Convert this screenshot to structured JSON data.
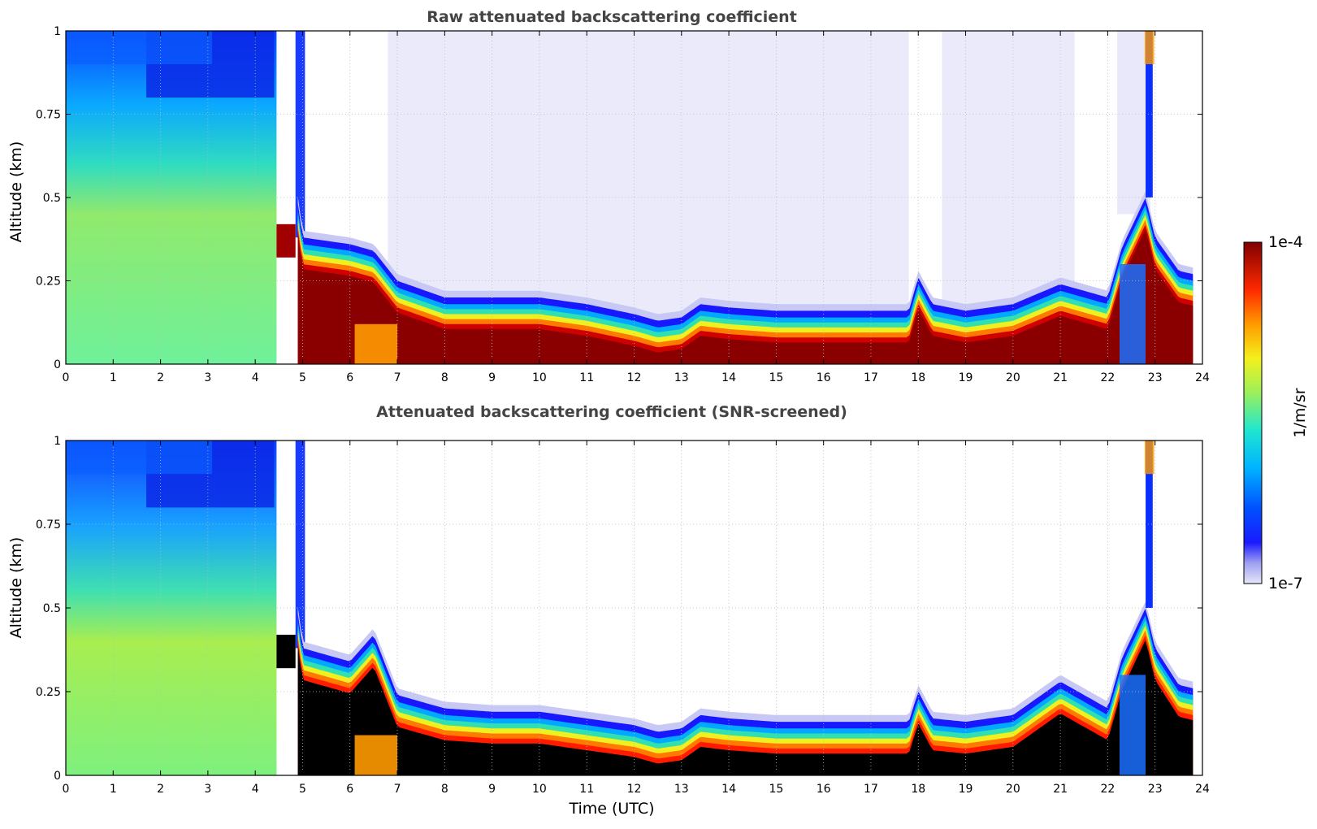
{
  "chart_data": [
    {
      "type": "heatmap",
      "title": "Raw attenuated backscattering coefficient",
      "xlabel": "",
      "ylabel": "Altitude (km)",
      "xlim": [
        0,
        24
      ],
      "ylim": [
        0,
        1
      ],
      "x_ticks": [
        "0",
        "1",
        "2",
        "3",
        "4",
        "5",
        "6",
        "7",
        "8",
        "9",
        "10",
        "11",
        "12",
        "13",
        "14",
        "15",
        "16",
        "17",
        "18",
        "19",
        "20",
        "21",
        "22",
        "23",
        "24"
      ],
      "y_ticks": [
        "0",
        "0.25",
        "0.5",
        "0.75",
        "1"
      ],
      "grid": true,
      "boundary_layer_top_km": {
        "x": [
          0,
          4.4,
          5.0,
          6.0,
          6.5,
          7.0,
          8.0,
          9.0,
          10.0,
          11.0,
          12.0,
          12.5,
          13.0,
          13.4,
          14.0,
          15.0,
          16.0,
          17.0,
          17.8,
          18.0,
          18.3,
          19.0,
          20.0,
          21.0,
          21.5,
          22.0,
          22.3,
          22.8,
          23.0,
          23.5,
          23.8
        ],
        "y": [
          1.0,
          1.0,
          0.38,
          0.36,
          0.34,
          0.25,
          0.2,
          0.2,
          0.2,
          0.18,
          0.15,
          0.13,
          0.14,
          0.18,
          0.17,
          0.16,
          0.16,
          0.16,
          0.16,
          0.26,
          0.18,
          0.16,
          0.18,
          0.24,
          0.22,
          0.2,
          0.35,
          0.5,
          0.38,
          0.28,
          0.27
        ]
      },
      "colorbar": {
        "label": "1/m/sr",
        "min_label": "1e-7",
        "max_label": "1e-4",
        "scale": "log",
        "colormap": "jet"
      }
    },
    {
      "type": "heatmap",
      "title": "Attenuated backscattering coefficient (SNR-screened)",
      "xlabel": "Time (UTC)",
      "ylabel": "Altitude (km)",
      "xlim": [
        0,
        24
      ],
      "ylim": [
        0,
        1
      ],
      "x_ticks": [
        "0",
        "1",
        "2",
        "3",
        "4",
        "5",
        "6",
        "7",
        "8",
        "9",
        "10",
        "11",
        "12",
        "13",
        "14",
        "15",
        "16",
        "17",
        "18",
        "19",
        "20",
        "21",
        "22",
        "23",
        "24"
      ],
      "y_ticks": [
        "0",
        "0.25",
        "0.5",
        "0.75",
        "1"
      ],
      "grid": true,
      "screened_color": "#000000",
      "boundary_layer_top_km": {
        "x": [
          0,
          4.4,
          5.0,
          6.0,
          6.5,
          7.0,
          8.0,
          9.0,
          10.0,
          11.0,
          12.0,
          12.5,
          13.0,
          13.4,
          14.0,
          15.0,
          16.0,
          17.0,
          17.8,
          18.0,
          18.3,
          19.0,
          20.0,
          21.0,
          21.5,
          22.0,
          22.3,
          22.8,
          23.0,
          23.5,
          23.8
        ],
        "y": [
          1.0,
          1.0,
          0.38,
          0.34,
          0.42,
          0.24,
          0.2,
          0.19,
          0.19,
          0.17,
          0.15,
          0.13,
          0.14,
          0.18,
          0.17,
          0.16,
          0.16,
          0.16,
          0.16,
          0.25,
          0.17,
          0.16,
          0.18,
          0.28,
          0.24,
          0.2,
          0.35,
          0.5,
          0.38,
          0.27,
          0.26
        ]
      },
      "colorbar": {
        "label": "1/m/sr",
        "min_label": "1e-7",
        "max_label": "1e-4",
        "scale": "log",
        "colormap": "jet"
      }
    }
  ],
  "colors": {
    "background_low": "#e6e6fa",
    "jet_low": "#00007f",
    "jet_high": "#7f0000",
    "grid": "#bbbbbb",
    "title": "#444444"
  }
}
